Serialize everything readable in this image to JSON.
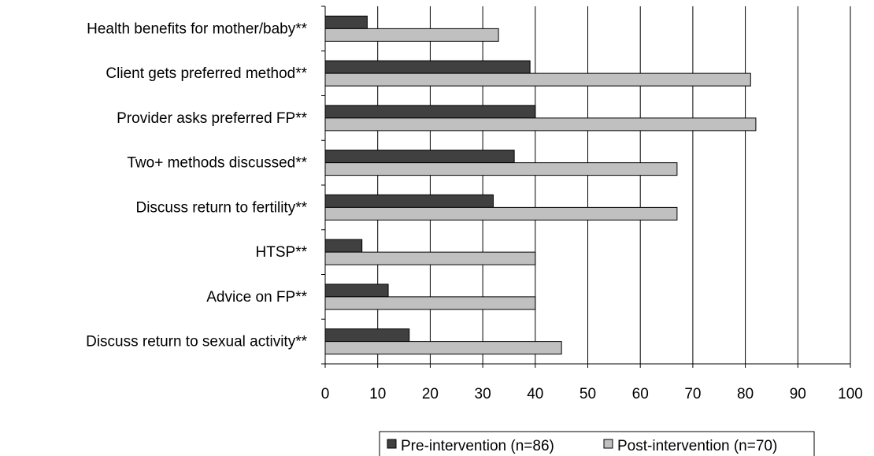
{
  "chart_data": {
    "type": "bar",
    "orientation": "horizontal",
    "title": "",
    "xlabel": "",
    "ylabel": "",
    "xlim": [
      0,
      100
    ],
    "xticks": [
      0,
      10,
      20,
      30,
      40,
      50,
      60,
      70,
      80,
      90,
      100
    ],
    "grid": "vertical",
    "legend_position": "bottom",
    "categories": [
      "Health benefits for mother/baby**",
      "Client gets preferred method**",
      "Provider asks preferred FP**",
      "Two+ methods discussed**",
      "Discuss return to fertility**",
      "HTSP**",
      "Advice on FP**",
      "Discuss return to sexual activity**"
    ],
    "series": [
      {
        "name": "Pre-intervention (n=86)",
        "color": "#404040",
        "values": [
          8,
          39,
          40,
          36,
          32,
          7,
          12,
          16
        ]
      },
      {
        "name": "Post-intervention (n=70)",
        "color": "#c0c0c0",
        "values": [
          33,
          81,
          82,
          67,
          67,
          40,
          40,
          45
        ]
      }
    ]
  }
}
